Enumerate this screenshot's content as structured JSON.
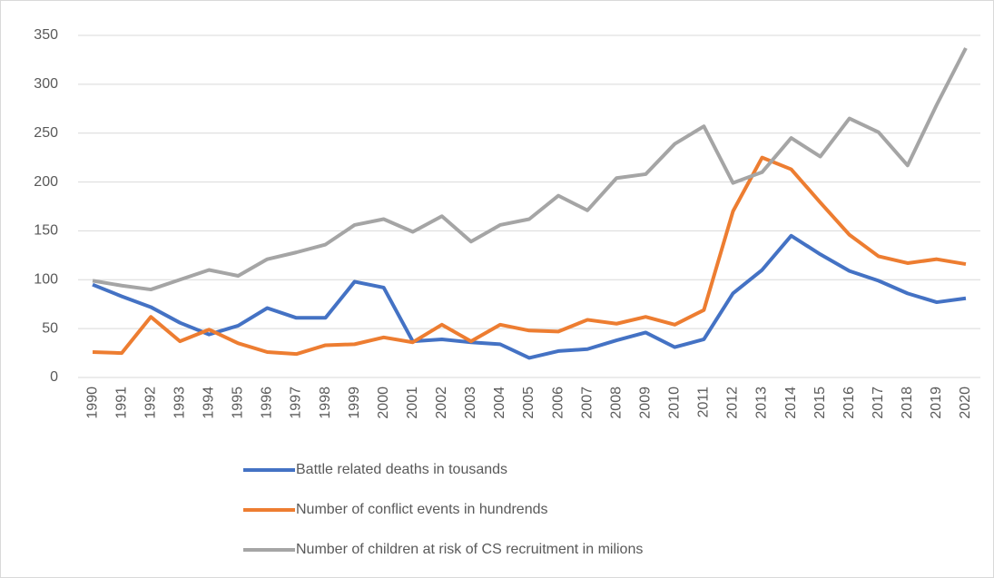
{
  "chart_data": {
    "type": "line",
    "categories": [
      "1990",
      "1991",
      "1992",
      "1993",
      "1994",
      "1995",
      "1996",
      "1997",
      "1998",
      "1999",
      "2000",
      "2001",
      "2002",
      "2003",
      "2004",
      "2005",
      "2006",
      "2007",
      "2008",
      "2009",
      "2010",
      "2011",
      "2012",
      "2013",
      "2014",
      "2015",
      "2016",
      "2017",
      "2018",
      "2019",
      "2020"
    ],
    "series": [
      {
        "name": "Battle related deaths in tousands",
        "color": "#4472c4",
        "values": [
          95,
          83,
          72,
          56,
          44,
          53,
          71,
          61,
          61,
          98,
          92,
          37,
          39,
          36,
          34,
          20,
          27,
          29,
          38,
          46,
          31,
          39,
          86,
          110,
          145,
          126,
          109,
          99,
          86,
          77,
          81
        ]
      },
      {
        "name": "Number of conflict events in hundrends",
        "color": "#ed7d31",
        "values": [
          26,
          25,
          62,
          37,
          49,
          35,
          26,
          24,
          33,
          34,
          41,
          36,
          54,
          37,
          54,
          48,
          47,
          59,
          55,
          62,
          54,
          69,
          170,
          225,
          213,
          179,
          146,
          124,
          117,
          121,
          116
        ]
      },
      {
        "name": "Number of children at risk of CS recruitment in milions",
        "color": "#a5a5a5",
        "values": [
          99,
          94,
          90,
          100,
          110,
          104,
          121,
          128,
          136,
          156,
          162,
          149,
          165,
          139,
          156,
          162,
          186,
          171,
          204,
          208,
          239,
          257,
          199,
          210,
          245,
          226,
          265,
          251,
          217,
          279,
          337
        ]
      }
    ],
    "ylim": [
      0,
      350
    ],
    "yticks": [
      0,
      50,
      100,
      150,
      200,
      250,
      300,
      350
    ],
    "grid": true,
    "legend": "bottom"
  }
}
